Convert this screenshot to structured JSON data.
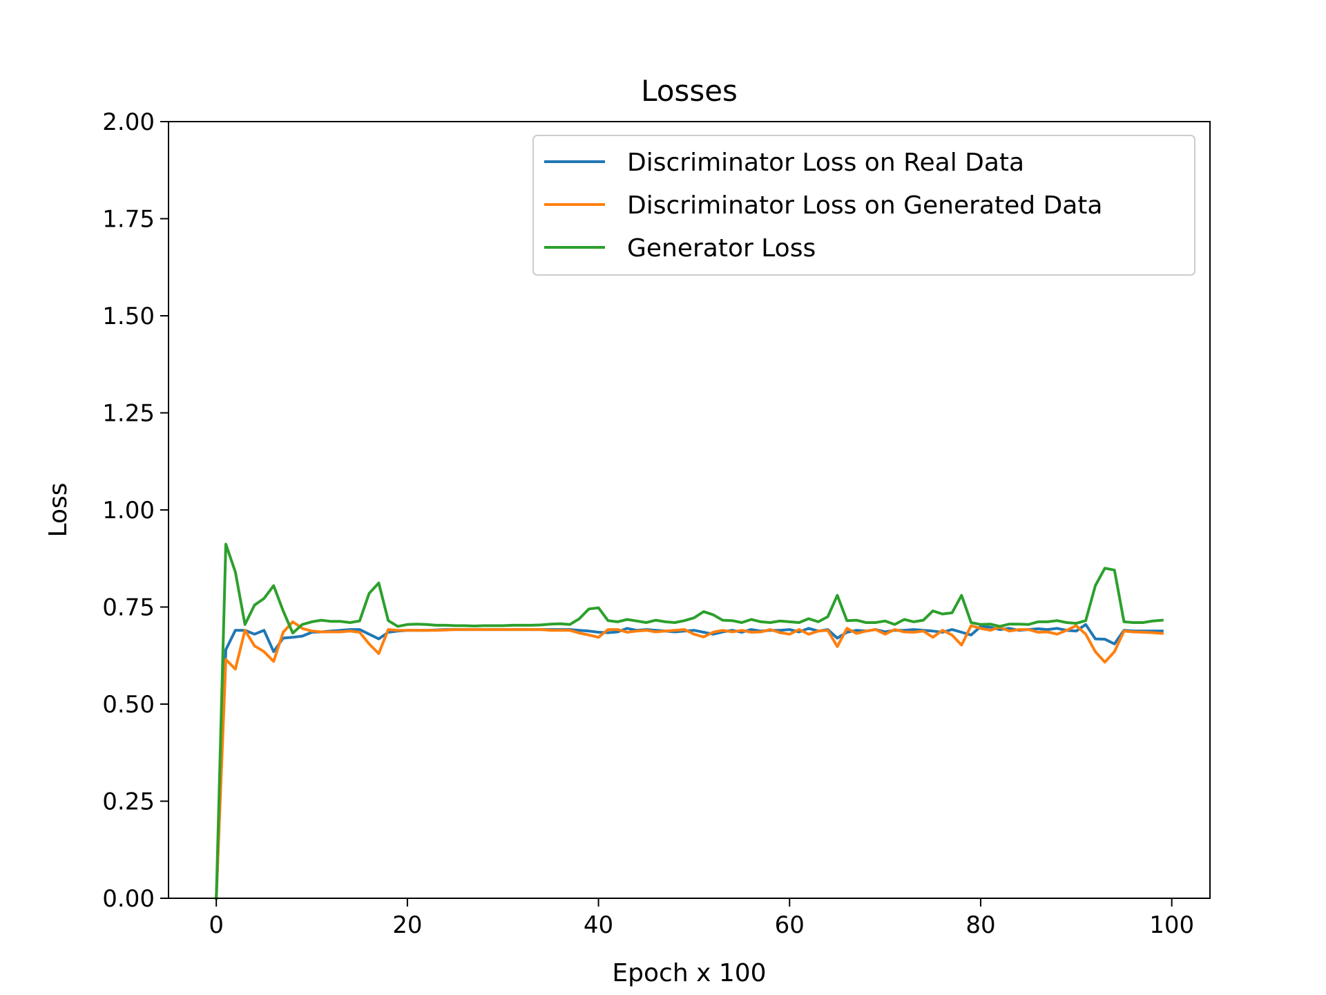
{
  "chart_data": {
    "type": "line",
    "title": "Losses",
    "xlabel": "Epoch x 100",
    "ylabel": "Loss",
    "xlim": [
      -5,
      104
    ],
    "ylim": [
      0,
      2
    ],
    "xticks": [
      0,
      20,
      40,
      60,
      80,
      100
    ],
    "yticks": [
      0,
      0.25,
      0.5,
      0.75,
      1.0,
      1.25,
      1.5,
      1.75,
      2.0
    ],
    "ytick_labels": [
      "0.00",
      "0.25",
      "0.50",
      "0.75",
      "1.00",
      "1.25",
      "1.50",
      "1.75",
      "2.00"
    ],
    "xtick_labels": [
      "0",
      "20",
      "40",
      "60",
      "80",
      "100"
    ],
    "grid": false,
    "legend": "top-right",
    "series": [
      {
        "name": "Discriminator Loss on Real Data",
        "color": "#1f77b4",
        "values": [
          0.0,
          0.64,
          0.69,
          0.69,
          0.68,
          0.69,
          0.635,
          0.67,
          0.672,
          0.675,
          0.685,
          0.686,
          0.688,
          0.69,
          0.692,
          0.692,
          0.68,
          0.668,
          0.685,
          0.688,
          0.69,
          0.69,
          0.69,
          0.691,
          0.692,
          0.692,
          0.692,
          0.692,
          0.692,
          0.692,
          0.692,
          0.692,
          0.692,
          0.692,
          0.692,
          0.692,
          0.692,
          0.692,
          0.69,
          0.688,
          0.685,
          0.684,
          0.686,
          0.695,
          0.69,
          0.692,
          0.69,
          0.688,
          0.686,
          0.688,
          0.69,
          0.685,
          0.68,
          0.686,
          0.69,
          0.685,
          0.692,
          0.688,
          0.69,
          0.69,
          0.692,
          0.686,
          0.695,
          0.688,
          0.692,
          0.67,
          0.685,
          0.69,
          0.688,
          0.692,
          0.686,
          0.69,
          0.69,
          0.692,
          0.69,
          0.688,
          0.685,
          0.692,
          0.685,
          0.678,
          0.7,
          0.698,
          0.692,
          0.695,
          0.69,
          0.692,
          0.694,
          0.692,
          0.695,
          0.69,
          0.688,
          0.705,
          0.668,
          0.667,
          0.655,
          0.69,
          0.688,
          0.688,
          0.688,
          0.688
        ]
      },
      {
        "name": "Discriminator Loss on Generated Data",
        "color": "#ff7f0e",
        "values": [
          0.0,
          0.615,
          0.59,
          0.69,
          0.65,
          0.635,
          0.61,
          0.685,
          0.712,
          0.695,
          0.688,
          0.686,
          0.686,
          0.686,
          0.688,
          0.685,
          0.655,
          0.63,
          0.692,
          0.69,
          0.69,
          0.69,
          0.69,
          0.69,
          0.691,
          0.692,
          0.692,
          0.692,
          0.692,
          0.692,
          0.692,
          0.692,
          0.692,
          0.692,
          0.692,
          0.69,
          0.69,
          0.69,
          0.683,
          0.678,
          0.672,
          0.692,
          0.692,
          0.685,
          0.688,
          0.69,
          0.686,
          0.688,
          0.69,
          0.692,
          0.68,
          0.673,
          0.685,
          0.69,
          0.686,
          0.69,
          0.685,
          0.686,
          0.692,
          0.684,
          0.68,
          0.692,
          0.68,
          0.688,
          0.69,
          0.648,
          0.695,
          0.682,
          0.688,
          0.692,
          0.68,
          0.692,
          0.686,
          0.685,
          0.688,
          0.672,
          0.69,
          0.678,
          0.652,
          0.702,
          0.695,
          0.69,
          0.698,
          0.688,
          0.692,
          0.692,
          0.685,
          0.686,
          0.68,
          0.69,
          0.702,
          0.68,
          0.635,
          0.608,
          0.635,
          0.688,
          0.686,
          0.685,
          0.684,
          0.682
        ]
      },
      {
        "name": "Generator Loss",
        "color": "#2ca02c",
        "values": [
          0.0,
          0.912,
          0.84,
          0.705,
          0.755,
          0.772,
          0.805,
          0.74,
          0.683,
          0.705,
          0.712,
          0.716,
          0.713,
          0.713,
          0.71,
          0.714,
          0.785,
          0.812,
          0.715,
          0.7,
          0.705,
          0.706,
          0.705,
          0.703,
          0.703,
          0.702,
          0.702,
          0.701,
          0.702,
          0.702,
          0.702,
          0.703,
          0.703,
          0.703,
          0.704,
          0.706,
          0.707,
          0.705,
          0.72,
          0.745,
          0.748,
          0.715,
          0.712,
          0.718,
          0.714,
          0.71,
          0.716,
          0.712,
          0.71,
          0.715,
          0.722,
          0.738,
          0.73,
          0.716,
          0.715,
          0.71,
          0.718,
          0.712,
          0.71,
          0.714,
          0.712,
          0.71,
          0.72,
          0.712,
          0.725,
          0.78,
          0.715,
          0.716,
          0.71,
          0.71,
          0.714,
          0.705,
          0.718,
          0.712,
          0.716,
          0.74,
          0.732,
          0.735,
          0.78,
          0.71,
          0.705,
          0.706,
          0.7,
          0.706,
          0.706,
          0.705,
          0.712,
          0.712,
          0.715,
          0.71,
          0.708,
          0.715,
          0.805,
          0.85,
          0.845,
          0.712,
          0.71,
          0.71,
          0.714,
          0.716
        ]
      }
    ]
  }
}
